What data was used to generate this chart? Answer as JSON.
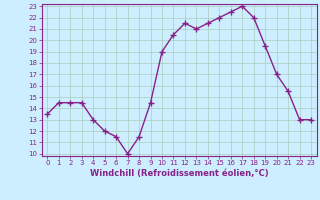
{
  "x": [
    0,
    1,
    2,
    3,
    4,
    5,
    6,
    7,
    8,
    9,
    10,
    11,
    12,
    13,
    14,
    15,
    16,
    17,
    18,
    19,
    20,
    21,
    22,
    23
  ],
  "y": [
    13.5,
    14.5,
    14.5,
    14.5,
    13.0,
    12.0,
    11.5,
    10.0,
    11.5,
    14.5,
    19.0,
    20.5,
    21.5,
    21.0,
    21.5,
    22.0,
    22.5,
    23.0,
    22.0,
    19.5,
    17.0,
    15.5,
    13.0,
    13.0
  ],
  "line_color": "#882288",
  "marker": "+",
  "markersize": 4,
  "bg_color": "#cceeff",
  "grid_color": "#aaccbb",
  "xlabel": "Windchill (Refroidissement éolien,°C)",
  "xlabel_color": "#882288",
  "tick_color": "#882288",
  "ylim": [
    10,
    23
  ],
  "xlim": [
    -0.5,
    23.5
  ],
  "yticks": [
    10,
    11,
    12,
    13,
    14,
    15,
    16,
    17,
    18,
    19,
    20,
    21,
    22,
    23
  ],
  "xticks": [
    0,
    1,
    2,
    3,
    4,
    5,
    6,
    7,
    8,
    9,
    10,
    11,
    12,
    13,
    14,
    15,
    16,
    17,
    18,
    19,
    20,
    21,
    22,
    23
  ],
  "linewidth": 1.0,
  "tick_labelsize": 5.0,
  "xlabel_fontsize": 6.0
}
